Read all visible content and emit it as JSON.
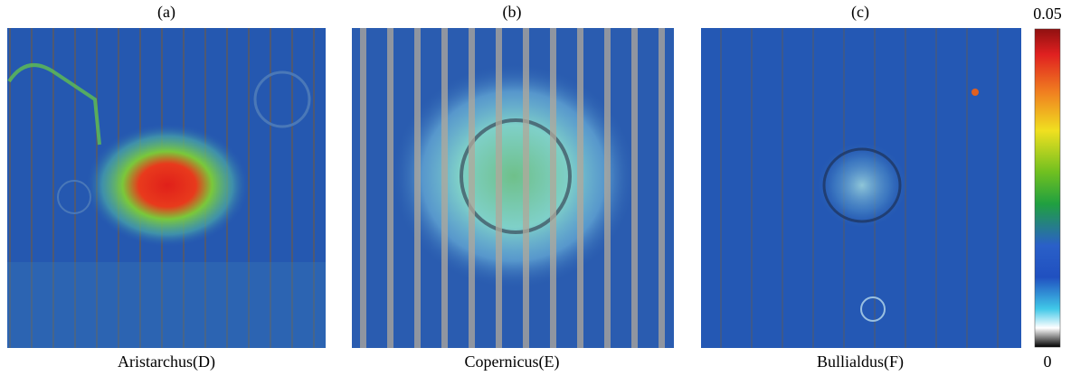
{
  "panels": [
    {
      "label": "(a)",
      "caption": "Aristarchus(D)"
    },
    {
      "label": "(b)",
      "caption": "Copernicus(E)"
    },
    {
      "label": "(c)",
      "caption": "Bullialdus(F)"
    }
  ],
  "colorbar": {
    "max": 0.05,
    "min": 0
  }
}
